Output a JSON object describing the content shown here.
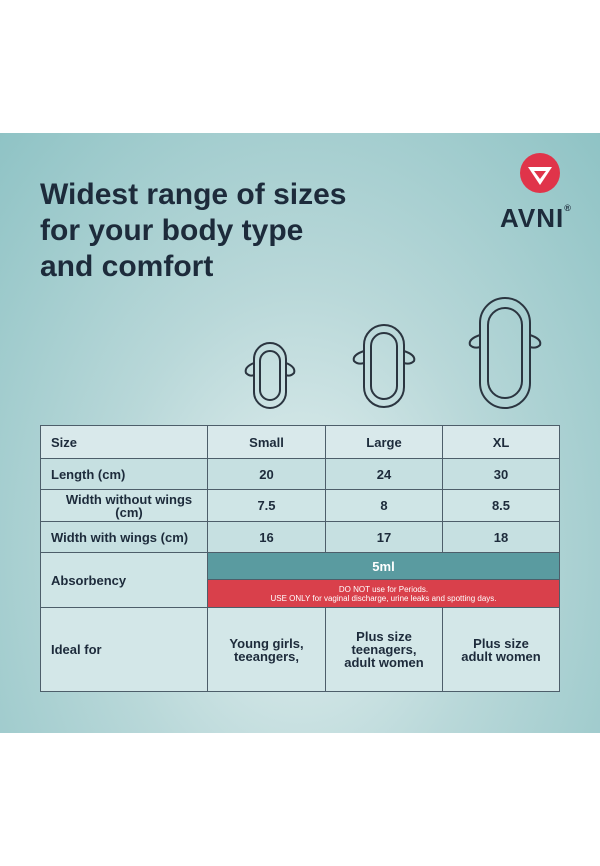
{
  "header": {
    "title_lines": [
      "Widest range of sizes",
      "for your body type",
      "and comfort"
    ],
    "logo": {
      "text": "AVNI",
      "mark": "®"
    }
  },
  "table": {
    "header": [
      "Size",
      "Small",
      "Large",
      "XL"
    ],
    "rows": [
      [
        "Length (cm)",
        "20",
        "24",
        "30"
      ],
      [
        "Width without wings (cm)",
        "7.5",
        "8",
        "8.5"
      ],
      [
        "Width with wings (cm)",
        "16",
        "17",
        "18"
      ]
    ],
    "absorbency": {
      "label": "Absorbency",
      "value": "5ml",
      "note_lines": [
        "DO NOT use for Periods.",
        "USE ONLY for vaginal discharge, urine leaks and spotting days."
      ]
    },
    "ideal_for": {
      "label": "Ideal for",
      "cells": [
        [
          "Young girls,",
          "teeangers,"
        ],
        [
          "Plus size",
          "teenagers,",
          "adult women"
        ],
        [
          "Plus size",
          "adult women"
        ]
      ]
    }
  }
}
